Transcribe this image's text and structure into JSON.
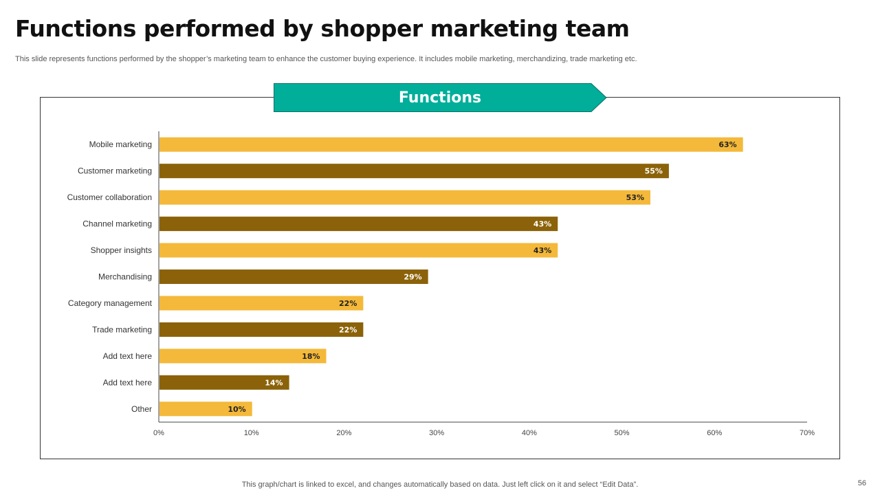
{
  "slide": {
    "title": "Functions performed by shopper marketing team",
    "subtitle": "This slide represents functions performed by the shopper’s marketing team to enhance the customer buying experience. It includes mobile marketing, merchandizing, trade marketing etc.",
    "banner_label": "Functions",
    "footer_note": "This graph/chart is linked to excel,  and changes automatically based on data. Just left click on it and select “Edit Data”.",
    "page_number": "56"
  },
  "colors": {
    "light_bar": "#F4B93A",
    "dark_bar": "#8B6209",
    "banner": "#00AE9A",
    "axis": "#444444"
  },
  "chart_data": {
    "type": "bar",
    "orientation": "horizontal",
    "title": "Functions",
    "xlabel": "",
    "ylabel": "",
    "categories": [
      "Mobile marketing",
      "Customer marketing",
      "Customer collaboration",
      "Channel marketing",
      "Shopper insights",
      "Merchandising",
      "Category management",
      "Trade marketing",
      "Add text here",
      "Add text here",
      "Other"
    ],
    "values": [
      63,
      55,
      53,
      43,
      43,
      29,
      22,
      22,
      18,
      14,
      10
    ],
    "data_labels": [
      "63%",
      "55%",
      "53%",
      "43%",
      "43%",
      "29%",
      "22%",
      "22%",
      "18%",
      "14%",
      "10%"
    ],
    "bar_colors": [
      "light",
      "dark",
      "light",
      "dark",
      "light",
      "dark",
      "light",
      "dark",
      "light",
      "dark",
      "light"
    ],
    "xlim": [
      0,
      70
    ],
    "x_ticks": [
      0,
      10,
      20,
      30,
      40,
      50,
      60,
      70
    ],
    "x_tick_labels": [
      "0%",
      "10%",
      "20%",
      "30%",
      "40%",
      "50%",
      "60%",
      "70%"
    ],
    "grid": false,
    "legend": "none"
  }
}
